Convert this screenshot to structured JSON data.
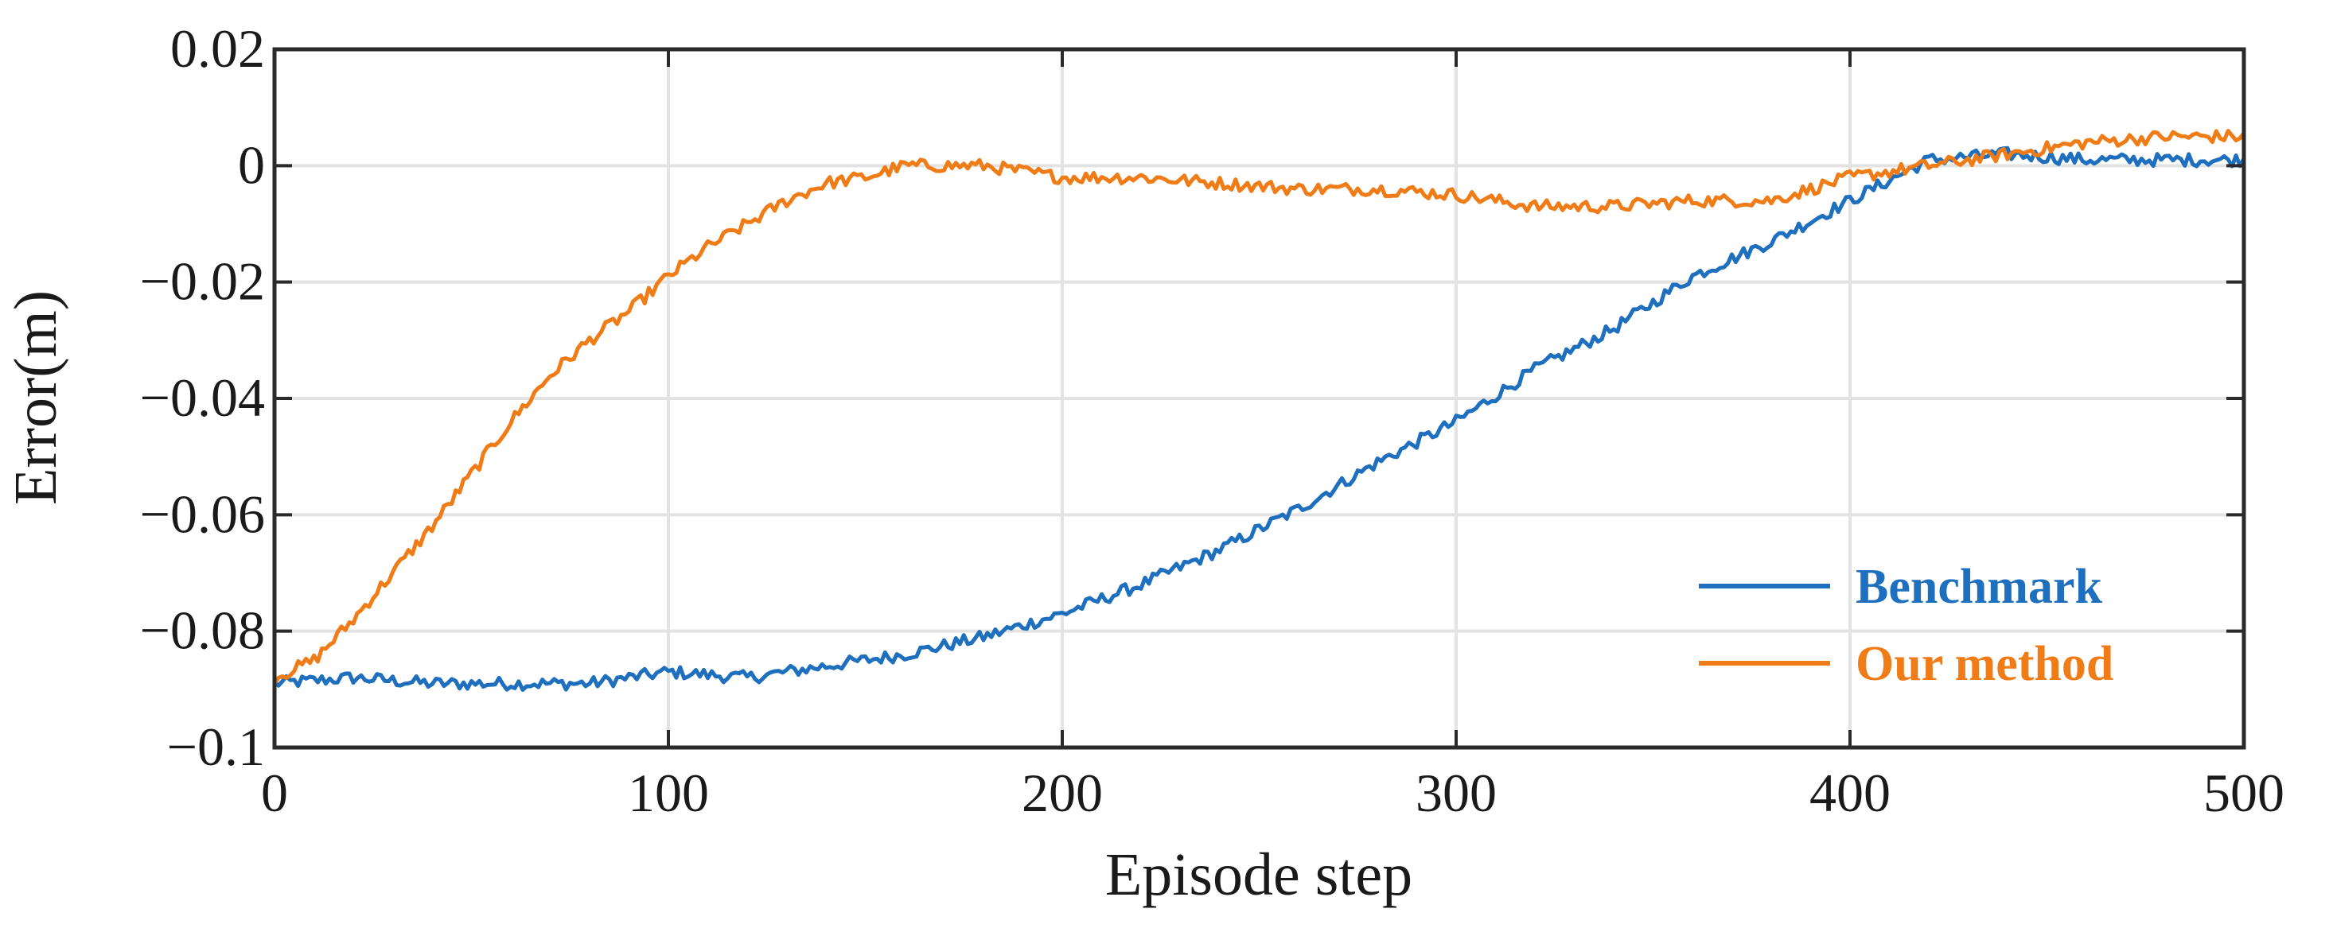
{
  "chart_data": {
    "type": "line",
    "xlabel": "Episode step",
    "ylabel": "Error(m)",
    "xlim": [
      0,
      500
    ],
    "ylim": [
      -0.1,
      0.02
    ],
    "x_ticks": [
      "0",
      "100",
      "200",
      "300",
      "400",
      "500"
    ],
    "y_ticks": [
      "0.02",
      "0",
      "−0.02",
      "−0.04",
      "−0.06",
      "−0.08",
      "−0.1"
    ],
    "grid": true,
    "legend_position": "bottom-right",
    "series": [
      {
        "name": "Benchmark",
        "color": "#1f6fbf",
        "x": [
          0,
          20,
          40,
          60,
          80,
          100,
          120,
          140,
          160,
          180,
          200,
          220,
          240,
          260,
          280,
          300,
          320,
          340,
          360,
          380,
          400,
          420,
          440,
          460,
          480,
          500
        ],
        "y": [
          -0.089,
          -0.088,
          -0.089,
          -0.089,
          -0.089,
          -0.087,
          -0.088,
          -0.086,
          -0.084,
          -0.081,
          -0.077,
          -0.072,
          -0.066,
          -0.059,
          -0.051,
          -0.044,
          -0.035,
          -0.028,
          -0.019,
          -0.013,
          -0.006,
          0.001,
          0.002,
          0.001,
          0.001,
          0.001
        ]
      },
      {
        "name": "Our method",
        "color": "#f07c18",
        "x": [
          0,
          10,
          20,
          30,
          40,
          50,
          60,
          70,
          80,
          90,
          100,
          110,
          120,
          130,
          140,
          150,
          160,
          180,
          200,
          220,
          240,
          260,
          280,
          300,
          320,
          340,
          360,
          380,
          400,
          420,
          440,
          460,
          480,
          500
        ],
        "y": [
          -0.088,
          -0.085,
          -0.078,
          -0.07,
          -0.062,
          -0.053,
          -0.044,
          -0.036,
          -0.03,
          -0.025,
          -0.019,
          -0.014,
          -0.01,
          -0.006,
          -0.003,
          -0.002,
          0.0,
          0.0,
          -0.002,
          -0.002,
          -0.003,
          -0.004,
          -0.004,
          -0.005,
          -0.007,
          -0.007,
          -0.006,
          -0.006,
          -0.002,
          0.0,
          0.002,
          0.004,
          0.005,
          0.005
        ]
      }
    ]
  }
}
